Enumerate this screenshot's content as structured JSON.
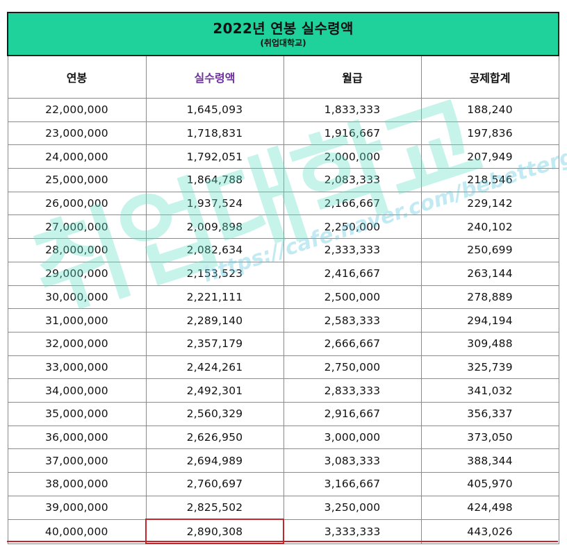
{
  "title": "2022년 연봉 실수령액",
  "subtitle": "(취업대학교)",
  "headers": [
    "연봉",
    "실수령액",
    "월급",
    "공제합계"
  ],
  "accent_color": "#7030a0",
  "header_color": "#1fd19a",
  "highlight_color": "#c0282e",
  "rows": [
    [
      "22,000,000",
      "1,645,093",
      "1,833,333",
      "188,240"
    ],
    [
      "23,000,000",
      "1,718,831",
      "1,916,667",
      "197,836"
    ],
    [
      "24,000,000",
      "1,792,051",
      "2,000,000",
      "207,949"
    ],
    [
      "25,000,000",
      "1,864,788",
      "2,083,333",
      "218,546"
    ],
    [
      "26,000,000",
      "1,937,524",
      "2,166,667",
      "229,142"
    ],
    [
      "27,000,000",
      "2,009,898",
      "2,250,000",
      "240,102"
    ],
    [
      "28,000,000",
      "2,082,634",
      "2,333,333",
      "250,699"
    ],
    [
      "29,000,000",
      "2,153,523",
      "2,416,667",
      "263,144"
    ],
    [
      "30,000,000",
      "2,221,111",
      "2,500,000",
      "278,889"
    ],
    [
      "31,000,000",
      "2,289,140",
      "2,583,333",
      "294,194"
    ],
    [
      "32,000,000",
      "2,357,179",
      "2,666,667",
      "309,488"
    ],
    [
      "33,000,000",
      "2,424,261",
      "2,750,000",
      "325,739"
    ],
    [
      "34,000,000",
      "2,492,301",
      "2,833,333",
      "341,032"
    ],
    [
      "35,000,000",
      "2,560,329",
      "2,916,667",
      "356,337"
    ],
    [
      "36,000,000",
      "2,626,950",
      "3,000,000",
      "373,050"
    ],
    [
      "37,000,000",
      "2,694,989",
      "3,083,333",
      "388,344"
    ],
    [
      "38,000,000",
      "2,760,697",
      "3,166,667",
      "405,970"
    ],
    [
      "39,000,000",
      "2,825,502",
      "3,250,000",
      "424,498"
    ],
    [
      "40,000,000",
      "2,890,308",
      "3,333,333",
      "443,026"
    ]
  ],
  "highlighted_row": 18,
  "watermark": {
    "text": "취업대학교",
    "url": "https://cafe.naver.com/bebettergirls"
  }
}
